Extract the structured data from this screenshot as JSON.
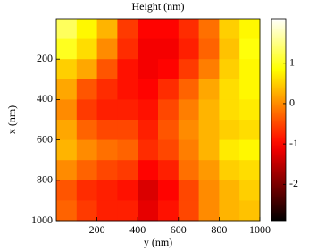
{
  "chart_data": {
    "type": "heatmap",
    "title": "Height  (nm)",
    "xlabel": "y  (nm)",
    "ylabel": "x  (nm)",
    "colormap": "hot",
    "x": [
      50,
      150,
      250,
      350,
      450,
      550,
      650,
      750,
      850,
      950
    ],
    "y": [
      50,
      150,
      250,
      350,
      450,
      550,
      650,
      750,
      850,
      950
    ],
    "z": [
      [
        1.3,
        0.8,
        0.3,
        -0.6,
        -1,
        -1,
        -0.7,
        -0.2,
        0.5,
        0.8
      ],
      [
        1.0,
        0.6,
        0,
        -0.7,
        -1.1,
        -1.1,
        -0.8,
        -0.3,
        0.4,
        0.9
      ],
      [
        0.5,
        0.2,
        -0.4,
        -0.9,
        -1.1,
        -1.0,
        -0.6,
        -0.1,
        0.5,
        0.8
      ],
      [
        0.2,
        -0.4,
        -0.7,
        -0.9,
        -1.0,
        -0.7,
        -0.3,
        0.2,
        0.6,
        0.8
      ],
      [
        0,
        -0.6,
        -0.8,
        -0.8,
        -0.9,
        -0.5,
        -0.1,
        0.3,
        0.6,
        0.7
      ],
      [
        0.2,
        -0.3,
        -0.5,
        -0.5,
        -0.8,
        -0.4,
        0,
        0.3,
        0.5,
        0.6
      ],
      [
        0.3,
        0,
        -0.2,
        -0.3,
        -0.7,
        -0.5,
        -0.1,
        0.3,
        0.7,
        0.8
      ],
      [
        0,
        -0.3,
        -0.5,
        -0.6,
        -1.0,
        -0.8,
        -0.2,
        0.1,
        0.5,
        0.6
      ],
      [
        -0.4,
        -0.7,
        -0.8,
        -0.9,
        -1.3,
        -1.0,
        -0.5,
        0,
        0.3,
        0.5
      ],
      [
        -0.3,
        -0.6,
        -0.8,
        -0.8,
        -1.2,
        -0.9,
        -0.5,
        0,
        0.3,
        0.4
      ]
    ],
    "xlim": [
      0,
      1000
    ],
    "xticks": [
      200,
      400,
      600,
      800,
      1000
    ],
    "ylim": [
      0,
      1000
    ],
    "yticks": [
      200,
      400,
      600,
      800,
      1000
    ],
    "y_inverted": true,
    "clim": [
      -2.9,
      2.1
    ],
    "cticks": [
      -2,
      -1,
      0,
      1
    ]
  }
}
